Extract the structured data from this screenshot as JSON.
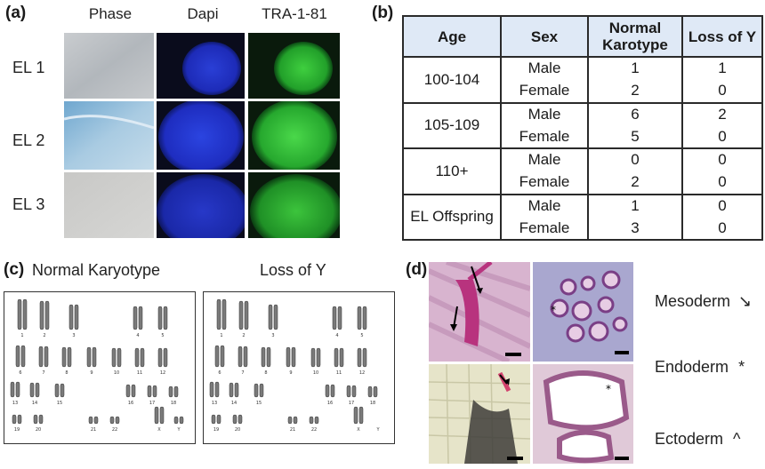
{
  "panel_a": {
    "label": "(a)",
    "columns": [
      "Phase",
      "Dapi",
      "TRA-1-81"
    ],
    "rows": [
      "EL 1",
      "EL 2",
      "EL 3"
    ]
  },
  "panel_b": {
    "label": "(b)",
    "headers": [
      "Age",
      "Sex",
      "Normal Karotype",
      "Loss of Y"
    ],
    "groups": [
      {
        "age": "100-104",
        "rows": [
          [
            "Male",
            "1",
            "1"
          ],
          [
            "Female",
            "2",
            "0"
          ]
        ]
      },
      {
        "age": "105-109",
        "rows": [
          [
            "Male",
            "6",
            "2"
          ],
          [
            "Female",
            "5",
            "0"
          ]
        ]
      },
      {
        "age": "110+",
        "rows": [
          [
            "Male",
            "0",
            "0"
          ],
          [
            "Female",
            "2",
            "0"
          ]
        ]
      },
      {
        "age": "EL Offspring",
        "rows": [
          [
            "Male",
            "1",
            "0"
          ],
          [
            "Female",
            "3",
            "0"
          ]
        ]
      }
    ]
  },
  "panel_c": {
    "label": "(c)",
    "left_title": "Normal Karyotype",
    "right_title": "Loss of Y",
    "chromosome_labels": [
      "1",
      "2",
      "3",
      "4",
      "5",
      "6",
      "7",
      "8",
      "9",
      "10",
      "11",
      "12",
      "13",
      "14",
      "15",
      "16",
      "17",
      "18",
      "19",
      "20",
      "21",
      "22",
      "X",
      "Y"
    ]
  },
  "panel_d": {
    "label": "(d)",
    "legend": [
      {
        "name": "Mesoderm",
        "symbol": "↘"
      },
      {
        "name": "Endoderm",
        "symbol": "*"
      },
      {
        "name": "Ectoderm",
        "symbol": "^"
      }
    ]
  }
}
